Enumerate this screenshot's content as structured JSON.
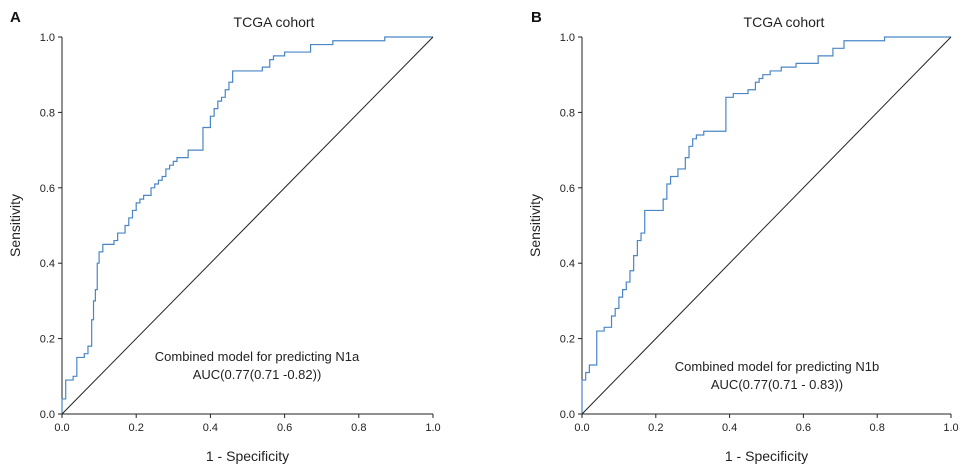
{
  "chart_data": [
    {
      "type": "line",
      "panel_label": "A",
      "title": "TCGA cohort",
      "xlabel": "1 - Specificity",
      "ylabel": "Sensitivity",
      "xlim": [
        0,
        1
      ],
      "ylim": [
        0,
        1
      ],
      "x_ticks": [
        "0.0",
        "0.2",
        "0.4",
        "0.6",
        "0.8",
        "1.0"
      ],
      "y_ticks": [
        "0.0",
        "0.2",
        "0.4",
        "0.6",
        "0.8",
        "1.0"
      ],
      "annotation_line1": "Combined model for predicting N1a",
      "annotation_line2": "AUC(0.77(0.71 -0.82))",
      "grid": false,
      "series": [
        {
          "color": "#4a86c6",
          "step": true,
          "points": [
            [
              0.0,
              0.0
            ],
            [
              0.0,
              0.04
            ],
            [
              0.01,
              0.04
            ],
            [
              0.01,
              0.09
            ],
            [
              0.03,
              0.09
            ],
            [
              0.03,
              0.1
            ],
            [
              0.04,
              0.1
            ],
            [
              0.04,
              0.15
            ],
            [
              0.06,
              0.15
            ],
            [
              0.06,
              0.16
            ],
            [
              0.07,
              0.16
            ],
            [
              0.07,
              0.18
            ],
            [
              0.08,
              0.18
            ],
            [
              0.08,
              0.25
            ],
            [
              0.085,
              0.25
            ],
            [
              0.085,
              0.3
            ],
            [
              0.09,
              0.3
            ],
            [
              0.09,
              0.33
            ],
            [
              0.095,
              0.33
            ],
            [
              0.095,
              0.4
            ],
            [
              0.1,
              0.4
            ],
            [
              0.1,
              0.43
            ],
            [
              0.11,
              0.43
            ],
            [
              0.11,
              0.45
            ],
            [
              0.14,
              0.45
            ],
            [
              0.14,
              0.46
            ],
            [
              0.15,
              0.46
            ],
            [
              0.15,
              0.48
            ],
            [
              0.17,
              0.48
            ],
            [
              0.17,
              0.5
            ],
            [
              0.18,
              0.5
            ],
            [
              0.18,
              0.52
            ],
            [
              0.19,
              0.52
            ],
            [
              0.19,
              0.54
            ],
            [
              0.2,
              0.54
            ],
            [
              0.2,
              0.56
            ],
            [
              0.21,
              0.56
            ],
            [
              0.21,
              0.57
            ],
            [
              0.22,
              0.57
            ],
            [
              0.22,
              0.58
            ],
            [
              0.24,
              0.58
            ],
            [
              0.24,
              0.6
            ],
            [
              0.25,
              0.6
            ],
            [
              0.25,
              0.61
            ],
            [
              0.26,
              0.61
            ],
            [
              0.26,
              0.62
            ],
            [
              0.27,
              0.62
            ],
            [
              0.27,
              0.63
            ],
            [
              0.28,
              0.63
            ],
            [
              0.28,
              0.65
            ],
            [
              0.29,
              0.65
            ],
            [
              0.29,
              0.66
            ],
            [
              0.3,
              0.66
            ],
            [
              0.3,
              0.67
            ],
            [
              0.31,
              0.67
            ],
            [
              0.31,
              0.68
            ],
            [
              0.34,
              0.68
            ],
            [
              0.34,
              0.7
            ],
            [
              0.38,
              0.7
            ],
            [
              0.38,
              0.76
            ],
            [
              0.4,
              0.76
            ],
            [
              0.4,
              0.79
            ],
            [
              0.41,
              0.79
            ],
            [
              0.41,
              0.81
            ],
            [
              0.42,
              0.81
            ],
            [
              0.42,
              0.83
            ],
            [
              0.43,
              0.83
            ],
            [
              0.43,
              0.84
            ],
            [
              0.44,
              0.84
            ],
            [
              0.44,
              0.86
            ],
            [
              0.45,
              0.86
            ],
            [
              0.45,
              0.88
            ],
            [
              0.46,
              0.88
            ],
            [
              0.46,
              0.91
            ],
            [
              0.54,
              0.91
            ],
            [
              0.54,
              0.92
            ],
            [
              0.56,
              0.92
            ],
            [
              0.56,
              0.94
            ],
            [
              0.57,
              0.94
            ],
            [
              0.57,
              0.95
            ],
            [
              0.6,
              0.95
            ],
            [
              0.6,
              0.96
            ],
            [
              0.67,
              0.96
            ],
            [
              0.67,
              0.98
            ],
            [
              0.73,
              0.98
            ],
            [
              0.73,
              0.99
            ],
            [
              0.87,
              0.99
            ],
            [
              0.87,
              1.0
            ],
            [
              1.0,
              1.0
            ]
          ]
        },
        {
          "color": "#222222",
          "points": [
            [
              0,
              0
            ],
            [
              1,
              1
            ]
          ]
        }
      ]
    },
    {
      "type": "line",
      "panel_label": "B",
      "title": "TCGA cohort",
      "xlabel": "1 - Specificity",
      "ylabel": "Sensitivity",
      "xlim": [
        0,
        1
      ],
      "ylim": [
        0,
        1
      ],
      "x_ticks": [
        "0.0",
        "0.2",
        "0.4",
        "0.6",
        "0.8",
        "1.0"
      ],
      "y_ticks": [
        "0.0",
        "0.2",
        "0.4",
        "0.6",
        "0.8",
        "1.0"
      ],
      "annotation_line1": "Combined model for predicting N1b",
      "annotation_line2": "AUC(0.77(0.71 - 0.83))",
      "grid": false,
      "series": [
        {
          "color": "#4a86c6",
          "step": true,
          "points": [
            [
              0.0,
              0.0
            ],
            [
              0.0,
              0.09
            ],
            [
              0.01,
              0.09
            ],
            [
              0.01,
              0.11
            ],
            [
              0.02,
              0.11
            ],
            [
              0.02,
              0.13
            ],
            [
              0.04,
              0.13
            ],
            [
              0.04,
              0.22
            ],
            [
              0.06,
              0.22
            ],
            [
              0.06,
              0.23
            ],
            [
              0.08,
              0.23
            ],
            [
              0.08,
              0.26
            ],
            [
              0.09,
              0.26
            ],
            [
              0.09,
              0.28
            ],
            [
              0.1,
              0.28
            ],
            [
              0.1,
              0.31
            ],
            [
              0.11,
              0.31
            ],
            [
              0.11,
              0.33
            ],
            [
              0.12,
              0.33
            ],
            [
              0.12,
              0.35
            ],
            [
              0.13,
              0.35
            ],
            [
              0.13,
              0.38
            ],
            [
              0.14,
              0.38
            ],
            [
              0.14,
              0.42
            ],
            [
              0.15,
              0.42
            ],
            [
              0.15,
              0.46
            ],
            [
              0.16,
              0.46
            ],
            [
              0.16,
              0.48
            ],
            [
              0.17,
              0.48
            ],
            [
              0.17,
              0.54
            ],
            [
              0.22,
              0.54
            ],
            [
              0.22,
              0.57
            ],
            [
              0.23,
              0.57
            ],
            [
              0.23,
              0.61
            ],
            [
              0.24,
              0.61
            ],
            [
              0.24,
              0.63
            ],
            [
              0.26,
              0.63
            ],
            [
              0.26,
              0.65
            ],
            [
              0.28,
              0.65
            ],
            [
              0.28,
              0.68
            ],
            [
              0.29,
              0.68
            ],
            [
              0.29,
              0.71
            ],
            [
              0.3,
              0.71
            ],
            [
              0.3,
              0.73
            ],
            [
              0.31,
              0.73
            ],
            [
              0.31,
              0.74
            ],
            [
              0.33,
              0.74
            ],
            [
              0.33,
              0.75
            ],
            [
              0.39,
              0.75
            ],
            [
              0.39,
              0.84
            ],
            [
              0.41,
              0.84
            ],
            [
              0.41,
              0.85
            ],
            [
              0.45,
              0.85
            ],
            [
              0.45,
              0.86
            ],
            [
              0.47,
              0.86
            ],
            [
              0.47,
              0.88
            ],
            [
              0.48,
              0.88
            ],
            [
              0.48,
              0.89
            ],
            [
              0.49,
              0.89
            ],
            [
              0.49,
              0.9
            ],
            [
              0.51,
              0.9
            ],
            [
              0.51,
              0.91
            ],
            [
              0.54,
              0.91
            ],
            [
              0.54,
              0.92
            ],
            [
              0.58,
              0.92
            ],
            [
              0.58,
              0.93
            ],
            [
              0.64,
              0.93
            ],
            [
              0.64,
              0.95
            ],
            [
              0.68,
              0.95
            ],
            [
              0.68,
              0.97
            ],
            [
              0.71,
              0.97
            ],
            [
              0.71,
              0.99
            ],
            [
              0.82,
              0.99
            ],
            [
              0.82,
              1.0
            ],
            [
              1.0,
              1.0
            ]
          ]
        },
        {
          "color": "#222222",
          "points": [
            [
              0,
              0
            ],
            [
              1,
              1
            ]
          ]
        }
      ]
    }
  ]
}
